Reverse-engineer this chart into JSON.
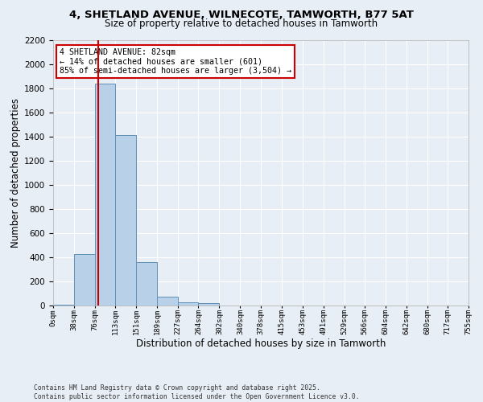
{
  "title_line1": "4, SHETLAND AVENUE, WILNECOTE, TAMWORTH, B77 5AT",
  "title_line2": "Size of property relative to detached houses in Tamworth",
  "xlabel": "Distribution of detached houses by size in Tamworth",
  "ylabel": "Number of detached properties",
  "bar_color": "#b8d0e8",
  "bar_edge_color": "#6090b8",
  "bg_color": "#e8eef5",
  "grid_color": "#ffffff",
  "property_size": 82,
  "annotation_line1": "4 SHETLAND AVENUE: 82sqm",
  "annotation_line2": "← 14% of detached houses are smaller (601)",
  "annotation_line3": "85% of semi-detached houses are larger (3,504) →",
  "annotation_box_color": "#ffffff",
  "annotation_border_color": "#cc0000",
  "vline_color": "#cc0000",
  "bin_edges": [
    0,
    38,
    76,
    113,
    151,
    189,
    227,
    264,
    302,
    340,
    378,
    415,
    453,
    491,
    529,
    566,
    604,
    642,
    680,
    717,
    755
  ],
  "bin_heights": [
    10,
    430,
    1840,
    1415,
    360,
    75,
    30,
    20,
    0,
    0,
    0,
    0,
    0,
    0,
    0,
    0,
    0,
    0,
    0,
    0
  ],
  "ylim": [
    0,
    2200
  ],
  "yticks": [
    0,
    200,
    400,
    600,
    800,
    1000,
    1200,
    1400,
    1600,
    1800,
    2000,
    2200
  ],
  "footnote1": "Contains HM Land Registry data © Crown copyright and database right 2025.",
  "footnote2": "Contains public sector information licensed under the Open Government Licence v3.0."
}
